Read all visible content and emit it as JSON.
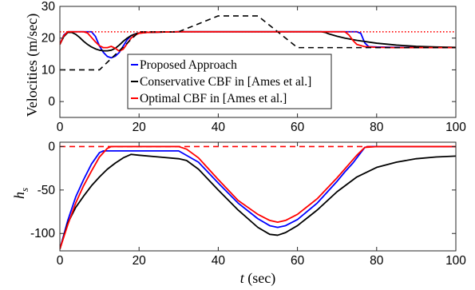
{
  "chart_data": [
    {
      "type": "line",
      "ylabel": "Velocities (m/sec)",
      "xlabel": "",
      "xlim": [
        0,
        100
      ],
      "ylim": [
        -5,
        30
      ],
      "xticks": [
        "0",
        "20",
        "40",
        "60",
        "80",
        "100"
      ],
      "yticks": [
        "0",
        "10",
        "20",
        "30"
      ],
      "grid": false,
      "legend": {
        "placement": "center",
        "entries": [
          "Proposed Approach",
          "Conservative CBF in [Ames et al.]",
          "Optimal CBF in [Ames et al.]"
        ]
      },
      "series": [
        {
          "name": "Proposed Approach",
          "color": "#0000ff",
          "style": "solid",
          "x": [
            0,
            1,
            2,
            3,
            4,
            5,
            6,
            7,
            8,
            9,
            10,
            11,
            12,
            13,
            14,
            15,
            16,
            17,
            18,
            19,
            20,
            22,
            25,
            30,
            35,
            40,
            45,
            50,
            55,
            60,
            65,
            70,
            74,
            75,
            76,
            77,
            78,
            80,
            85,
            90,
            95,
            100
          ],
          "y": [
            18.0,
            21.0,
            22.0,
            22.0,
            22.0,
            22.0,
            22.0,
            22.0,
            22.0,
            20.5,
            17.5,
            15.5,
            14.2,
            13.8,
            14.3,
            15.5,
            17.5,
            19.5,
            20.8,
            21.3,
            21.6,
            21.8,
            21.9,
            22.0,
            22.0,
            22.0,
            22.0,
            22.0,
            22.0,
            22.0,
            22.0,
            22.0,
            22.0,
            22.0,
            21.5,
            18.5,
            17.3,
            17.2,
            17.1,
            17.0,
            17.0,
            17.0
          ]
        },
        {
          "name": "Conservative CBF in [Ames et al.]",
          "color": "#000000",
          "style": "solid",
          "x": [
            0,
            1,
            2,
            3,
            4,
            5,
            6,
            7,
            8,
            9,
            10,
            11,
            12,
            13,
            14,
            15,
            16,
            17,
            18,
            19,
            20,
            22,
            25,
            30,
            35,
            40,
            45,
            50,
            55,
            60,
            65,
            66,
            67,
            68,
            70,
            72,
            75,
            80,
            85,
            90,
            95,
            100
          ],
          "y": [
            18.0,
            20.5,
            21.8,
            21.8,
            21.2,
            20.2,
            19.0,
            18.0,
            17.2,
            16.6,
            16.2,
            16.0,
            16.0,
            16.2,
            16.8,
            17.8,
            19.0,
            20.0,
            20.8,
            21.3,
            21.6,
            21.8,
            21.9,
            22.0,
            22.0,
            22.0,
            22.0,
            22.0,
            22.0,
            22.0,
            22.0,
            22.0,
            21.8,
            21.3,
            20.6,
            20.0,
            19.3,
            18.4,
            17.8,
            17.4,
            17.2,
            17.1
          ]
        },
        {
          "name": "Optimal CBF in [Ames et al.]",
          "color": "#ff0000",
          "style": "solid",
          "x": [
            0,
            1,
            2,
            3,
            4,
            5,
            6,
            7,
            8,
            9,
            10,
            11,
            12,
            13,
            14,
            15,
            16,
            17,
            18,
            19,
            20,
            22,
            25,
            30,
            35,
            40,
            45,
            50,
            55,
            60,
            65,
            70,
            72,
            73,
            74,
            75,
            77,
            80,
            85,
            90,
            95,
            100
          ],
          "y": [
            18.0,
            20.8,
            22.0,
            22.0,
            22.0,
            22.0,
            22.0,
            21.6,
            20.2,
            18.8,
            17.6,
            17.0,
            17.0,
            17.4,
            16.8,
            15.9,
            16.5,
            18.3,
            20.0,
            21.0,
            21.5,
            21.8,
            21.9,
            22.0,
            22.0,
            22.0,
            22.0,
            22.0,
            22.0,
            22.0,
            22.0,
            22.0,
            22.0,
            21.0,
            19.3,
            18.0,
            17.3,
            17.1,
            17.0,
            17.0,
            17.0,
            17.0
          ]
        },
        {
          "name": "",
          "color": "#000000",
          "style": "dashed",
          "x": [
            0,
            10,
            20,
            30,
            40,
            50,
            60,
            100
          ],
          "y": [
            10,
            10,
            22,
            22,
            27,
            27,
            17,
            17
          ]
        },
        {
          "name": "",
          "color": "#ff0000",
          "style": "dotted",
          "x": [
            0,
            100
          ],
          "y": [
            22,
            22
          ]
        }
      ]
    },
    {
      "type": "line",
      "ylabel": "h_s",
      "xlabel": "t (sec)",
      "xlim": [
        0,
        100
      ],
      "ylim": [
        -120,
        5
      ],
      "xticks": [
        "0",
        "20",
        "40",
        "60",
        "80",
        "100"
      ],
      "yticks": [
        "0",
        "-50",
        "-100"
      ],
      "grid": false,
      "series": [
        {
          "name": "Proposed Approach",
          "color": "#0000ff",
          "style": "solid",
          "x": [
            0,
            2,
            4,
            6,
            8,
            10,
            11,
            12,
            14,
            16,
            18,
            20,
            25,
            30,
            35,
            40,
            45,
            50,
            53,
            55,
            57,
            60,
            65,
            70,
            72,
            74,
            76,
            77,
            78,
            80,
            85,
            90,
            95,
            100
          ],
          "y": [
            -118,
            -85,
            -58,
            -38,
            -20,
            -7,
            -5,
            -5,
            -5,
            -5,
            -5,
            -5,
            -5,
            -5,
            -18,
            -42,
            -65,
            -83,
            -91,
            -93,
            -91,
            -84,
            -65,
            -40,
            -29,
            -19,
            -7,
            -1,
            0,
            0,
            0,
            0,
            0,
            0
          ]
        },
        {
          "name": "Conservative CBF in [Ames et al.]",
          "color": "#000000",
          "style": "solid",
          "x": [
            0,
            2,
            4,
            6,
            8,
            10,
            12,
            14,
            16,
            18,
            20,
            25,
            30,
            32,
            35,
            40,
            45,
            50,
            53,
            55,
            57,
            60,
            65,
            70,
            75,
            80,
            85,
            90,
            95,
            100
          ],
          "y": [
            -118,
            -88,
            -70,
            -57,
            -45,
            -35,
            -26,
            -19,
            -13,
            -9,
            -10,
            -12,
            -14,
            -16,
            -26,
            -50,
            -73,
            -93,
            -101,
            -102,
            -99,
            -91,
            -73,
            -52,
            -35,
            -24,
            -18,
            -14,
            -12,
            -11
          ]
        },
        {
          "name": "Optimal CBF in [Ames et al.]",
          "color": "#ff0000",
          "style": "solid",
          "x": [
            0,
            2,
            4,
            6,
            8,
            10,
            12,
            13,
            15,
            20,
            25,
            30,
            32,
            35,
            40,
            45,
            50,
            53,
            55,
            57,
            60,
            65,
            70,
            75,
            77,
            80,
            85,
            90,
            95,
            100
          ],
          "y": [
            -118,
            -90,
            -65,
            -45,
            -28,
            -12,
            -2,
            0,
            0,
            0,
            0,
            0,
            -3,
            -13,
            -38,
            -62,
            -78,
            -85,
            -87,
            -85,
            -78,
            -60,
            -36,
            -10,
            -1,
            0,
            0,
            0,
            0,
            0
          ]
        },
        {
          "name": "",
          "color": "#ff0000",
          "style": "dashed",
          "x": [
            0,
            100
          ],
          "y": [
            0,
            0
          ]
        }
      ]
    }
  ]
}
